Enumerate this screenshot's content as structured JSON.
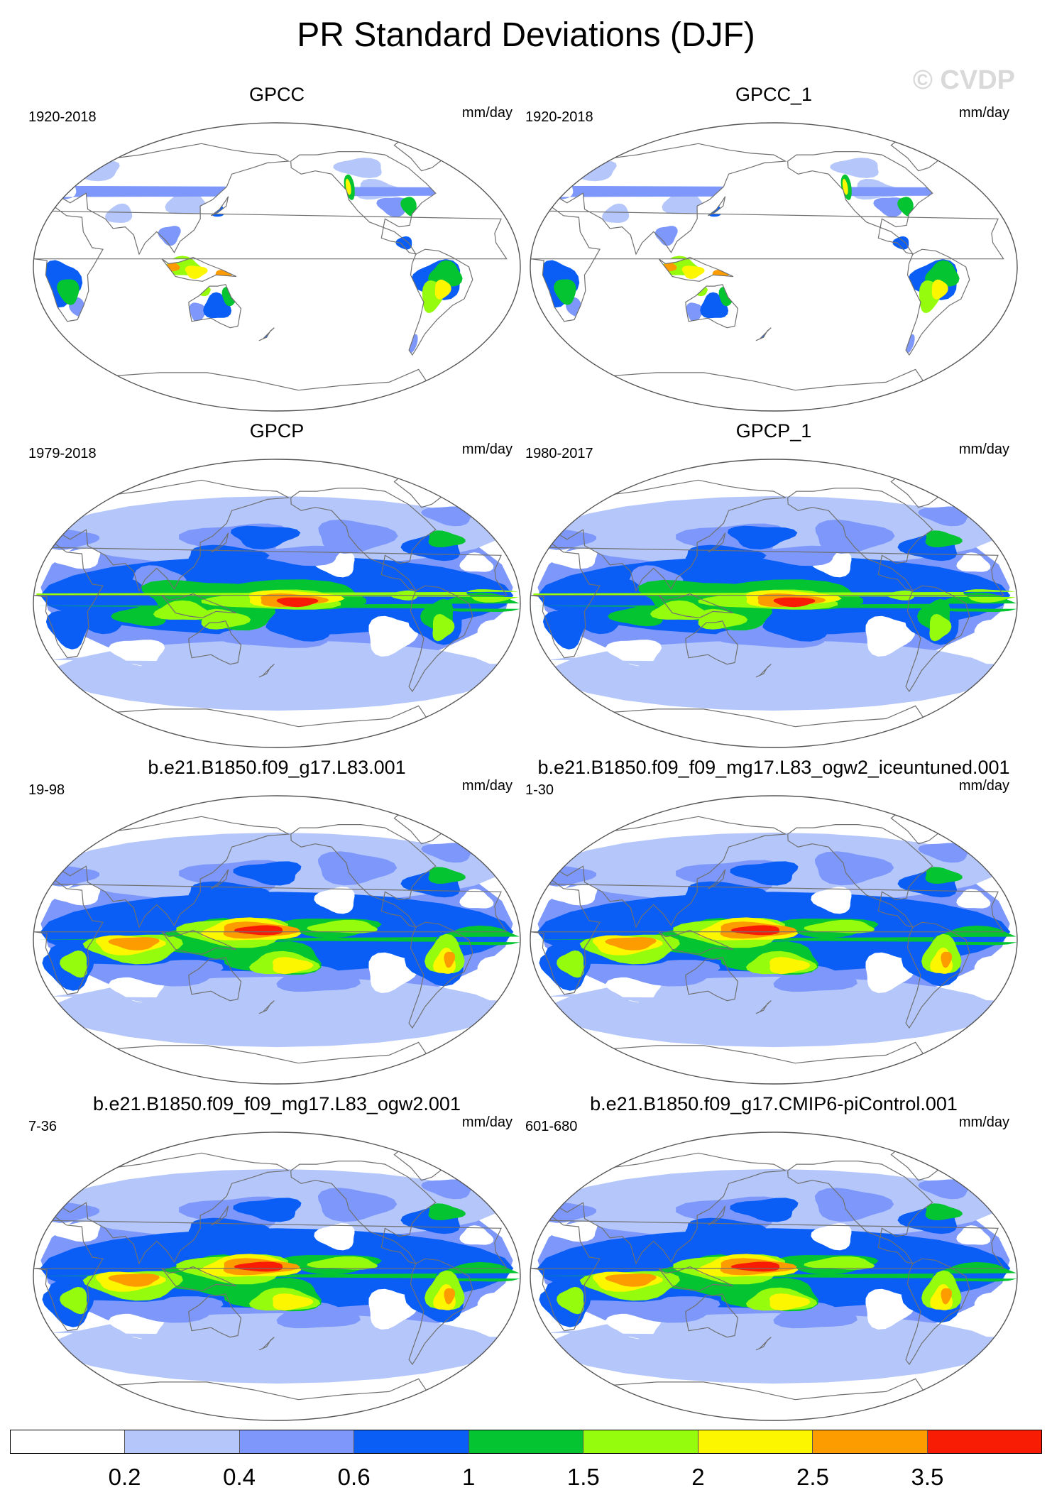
{
  "title": "PR Standard Deviations (DJF)",
  "watermark": "© CVDP",
  "colors": {
    "levels": [
      "#ffffff",
      "#b4c6fa",
      "#7d98fa",
      "#0a5ef6",
      "#04c431",
      "#94fc0c",
      "#fcf600",
      "#fc9c00",
      "#f91c04"
    ],
    "land": "#ffffff",
    "coast": "#707070"
  },
  "colorbar": {
    "labels": [
      "0.2",
      "0.4",
      "0.6",
      "1",
      "1.5",
      "2",
      "2.5",
      "3.5"
    ]
  },
  "panels": [
    {
      "title": "GPCC",
      "years": "1920-2018",
      "units": "mm/day",
      "field": "land"
    },
    {
      "title": "GPCC_1",
      "years": "1920-2018",
      "units": "mm/day",
      "field": "land"
    },
    {
      "title": "GPCP",
      "years": "1979-2018",
      "units": "mm/day",
      "field": "obs"
    },
    {
      "title": "GPCP_1",
      "years": "1980-2017",
      "units": "mm/day",
      "field": "obs"
    },
    {
      "title": "b.e21.B1850.f09_g17.L83.001",
      "years": "19-98",
      "units": "mm/day",
      "field": "model"
    },
    {
      "title": "b.e21.B1850.f09_f09_mg17.L83_ogw2_iceuntuned.001",
      "years": "1-30",
      "units": "mm/day",
      "field": "model"
    },
    {
      "title": "b.e21.B1850.f09_f09_mg17.L83_ogw2.001",
      "years": "7-36",
      "units": "mm/day",
      "field": "model"
    },
    {
      "title": "b.e21.B1850.f09_g17.CMIP6-piControl.001",
      "years": "601-680",
      "units": "mm/day",
      "field": "model"
    }
  ]
}
